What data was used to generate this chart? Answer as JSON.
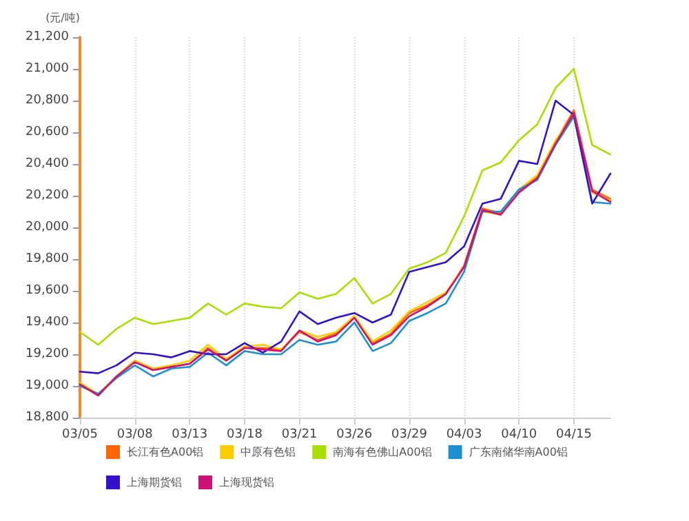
{
  "chart_data": {
    "type": "line",
    "ylabel": "(元/吨)",
    "categories": [
      "03/05",
      null,
      null,
      "03/08",
      null,
      null,
      "03/13",
      null,
      null,
      "03/18",
      null,
      null,
      "03/21",
      null,
      null,
      "03/26",
      null,
      null,
      "03/29",
      null,
      null,
      "04/03",
      null,
      null,
      "04/10",
      null,
      null,
      "04/15",
      null,
      null
    ],
    "series": [
      {
        "name": "长江有色A00铝",
        "color": "#ff6600",
        "values": [
          19010,
          18940,
          19060,
          19160,
          19100,
          19120,
          19140,
          19240,
          19160,
          19240,
          19240,
          19230,
          19340,
          19290,
          19330,
          19440,
          19270,
          19330,
          19460,
          19510,
          19580,
          19760,
          20120,
          20090,
          20230,
          20320,
          20540,
          20740,
          20240,
          20180
        ]
      },
      {
        "name": "中原有色铝",
        "color": "#ffcc00",
        "values": [
          19020,
          18950,
          19060,
          19160,
          19110,
          19130,
          19160,
          19260,
          19170,
          19250,
          19260,
          19230,
          19350,
          19310,
          19340,
          19440,
          19280,
          19350,
          19470,
          19530,
          19590,
          19750,
          20100,
          20080,
          20240,
          20330,
          20550,
          20710,
          20220,
          20170
        ]
      },
      {
        "name": "南海有色佛山A00铝",
        "color": "#aadd00",
        "values": [
          19340,
          19260,
          19360,
          19430,
          19390,
          19410,
          19430,
          19520,
          19450,
          19520,
          19500,
          19490,
          19590,
          19550,
          19580,
          19680,
          19520,
          19580,
          19740,
          19780,
          19840,
          20070,
          20360,
          20410,
          20550,
          20650,
          20880,
          21000,
          20520,
          20460
        ]
      },
      {
        "name": "广东南储华南A00铝",
        "color": "#1e90d0",
        "values": [
          19000,
          18950,
          19050,
          19130,
          19060,
          19110,
          19120,
          19210,
          19130,
          19220,
          19200,
          19200,
          19290,
          19260,
          19280,
          19400,
          19220,
          19270,
          19410,
          19460,
          19520,
          19720,
          20100,
          20100,
          20240,
          20300,
          20520,
          20700,
          20160,
          20150
        ]
      },
      {
        "name": "上海期货铝",
        "color": "#3311cc",
        "values": [
          19090,
          19080,
          19130,
          19210,
          19200,
          19180,
          19220,
          19200,
          19200,
          19270,
          19210,
          19280,
          19470,
          19390,
          19430,
          19460,
          19400,
          19450,
          19720,
          19750,
          19780,
          19880,
          20150,
          20180,
          20420,
          20400,
          20800,
          20710,
          20150,
          20340
        ]
      },
      {
        "name": "上海现货铝",
        "color": "#cc1177",
        "values": [
          19010,
          18940,
          19060,
          19150,
          19100,
          19120,
          19140,
          19230,
          19160,
          19240,
          19230,
          19220,
          19350,
          19280,
          19320,
          19430,
          19260,
          19320,
          19440,
          19500,
          19580,
          19750,
          20110,
          20080,
          20220,
          20310,
          20530,
          20720,
          20230,
          20160
        ]
      }
    ],
    "ylim": [
      18800,
      21200
    ],
    "yticks": [
      {
        "value": 18800,
        "label": "18,800"
      },
      {
        "value": 19000,
        "label": "19,000"
      },
      {
        "value": 19200,
        "label": "19,200"
      },
      {
        "value": 19400,
        "label": "19,400"
      },
      {
        "value": 19600,
        "label": "19,600"
      },
      {
        "value": 19800,
        "label": "19,800"
      },
      {
        "value": 20000,
        "label": "20,000"
      },
      {
        "value": 20200,
        "label": "20,200"
      },
      {
        "value": 20400,
        "label": "20,400"
      },
      {
        "value": 20600,
        "label": "20,600"
      },
      {
        "value": 20800,
        "label": "20,800"
      },
      {
        "value": 21000,
        "label": "21,000"
      },
      {
        "value": 21200,
        "label": "21,200"
      }
    ],
    "grid": "x",
    "legend": "bottom",
    "marker": "none",
    "line_style": "solid"
  }
}
